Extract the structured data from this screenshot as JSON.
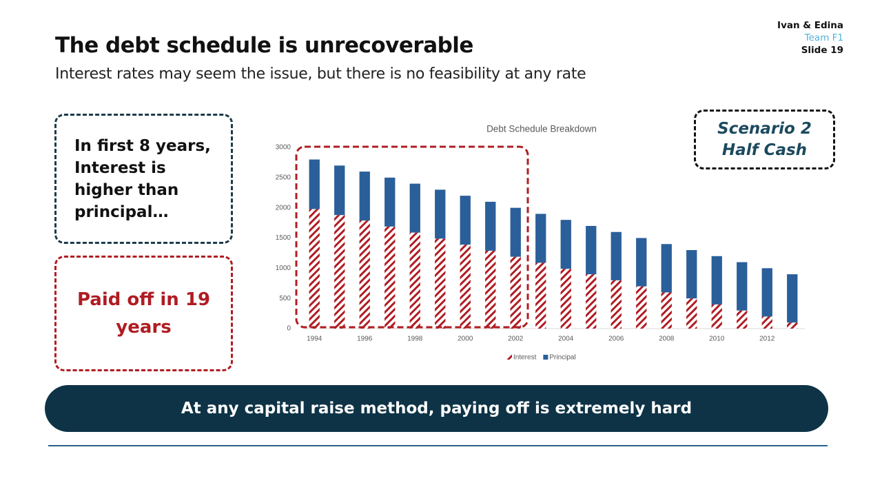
{
  "header": {
    "title": "The debt schedule is unrecoverable",
    "subtitle": "Interest rates may seem the issue, but there is no feasibility at any rate",
    "authors": "Ivan & Edina",
    "team": "Team F1",
    "slide": "Slide 19"
  },
  "callouts": {
    "interest_note": "In first 8 years, Interest is higher than principal…",
    "payoff_note": "Paid off in 19 years",
    "scenario": [
      "Scenario 2",
      "Half Cash"
    ]
  },
  "banner": "At any capital raise method, paying off is extremely hard",
  "chart_data": {
    "type": "stacked_bar",
    "title": "Debt Schedule Breakdown",
    "categories": [
      "1994",
      null,
      "1996",
      null,
      "1998",
      null,
      "2000",
      null,
      "2002",
      null,
      "2004",
      null,
      "2006",
      null,
      "2008",
      null,
      "2010",
      null,
      "2012",
      null
    ],
    "series": [
      {
        "name": "Interest",
        "color": "#b01c22",
        "pattern": "hatch",
        "values": [
          1980,
          1880,
          1790,
          1690,
          1590,
          1490,
          1390,
          1290,
          1190,
          1090,
          990,
          900,
          800,
          700,
          600,
          500,
          400,
          300,
          200,
          100
        ]
      },
      {
        "name": "Principal",
        "color": "#2a5f9a",
        "values": [
          820,
          820,
          810,
          810,
          810,
          810,
          810,
          810,
          810,
          810,
          810,
          800,
          800,
          800,
          800,
          800,
          800,
          800,
          800,
          800
        ]
      }
    ],
    "ylim": [
      0,
      3000
    ],
    "yticks": [
      0,
      500,
      1000,
      1500,
      2000,
      2500,
      3000
    ],
    "legend": "bottom"
  }
}
